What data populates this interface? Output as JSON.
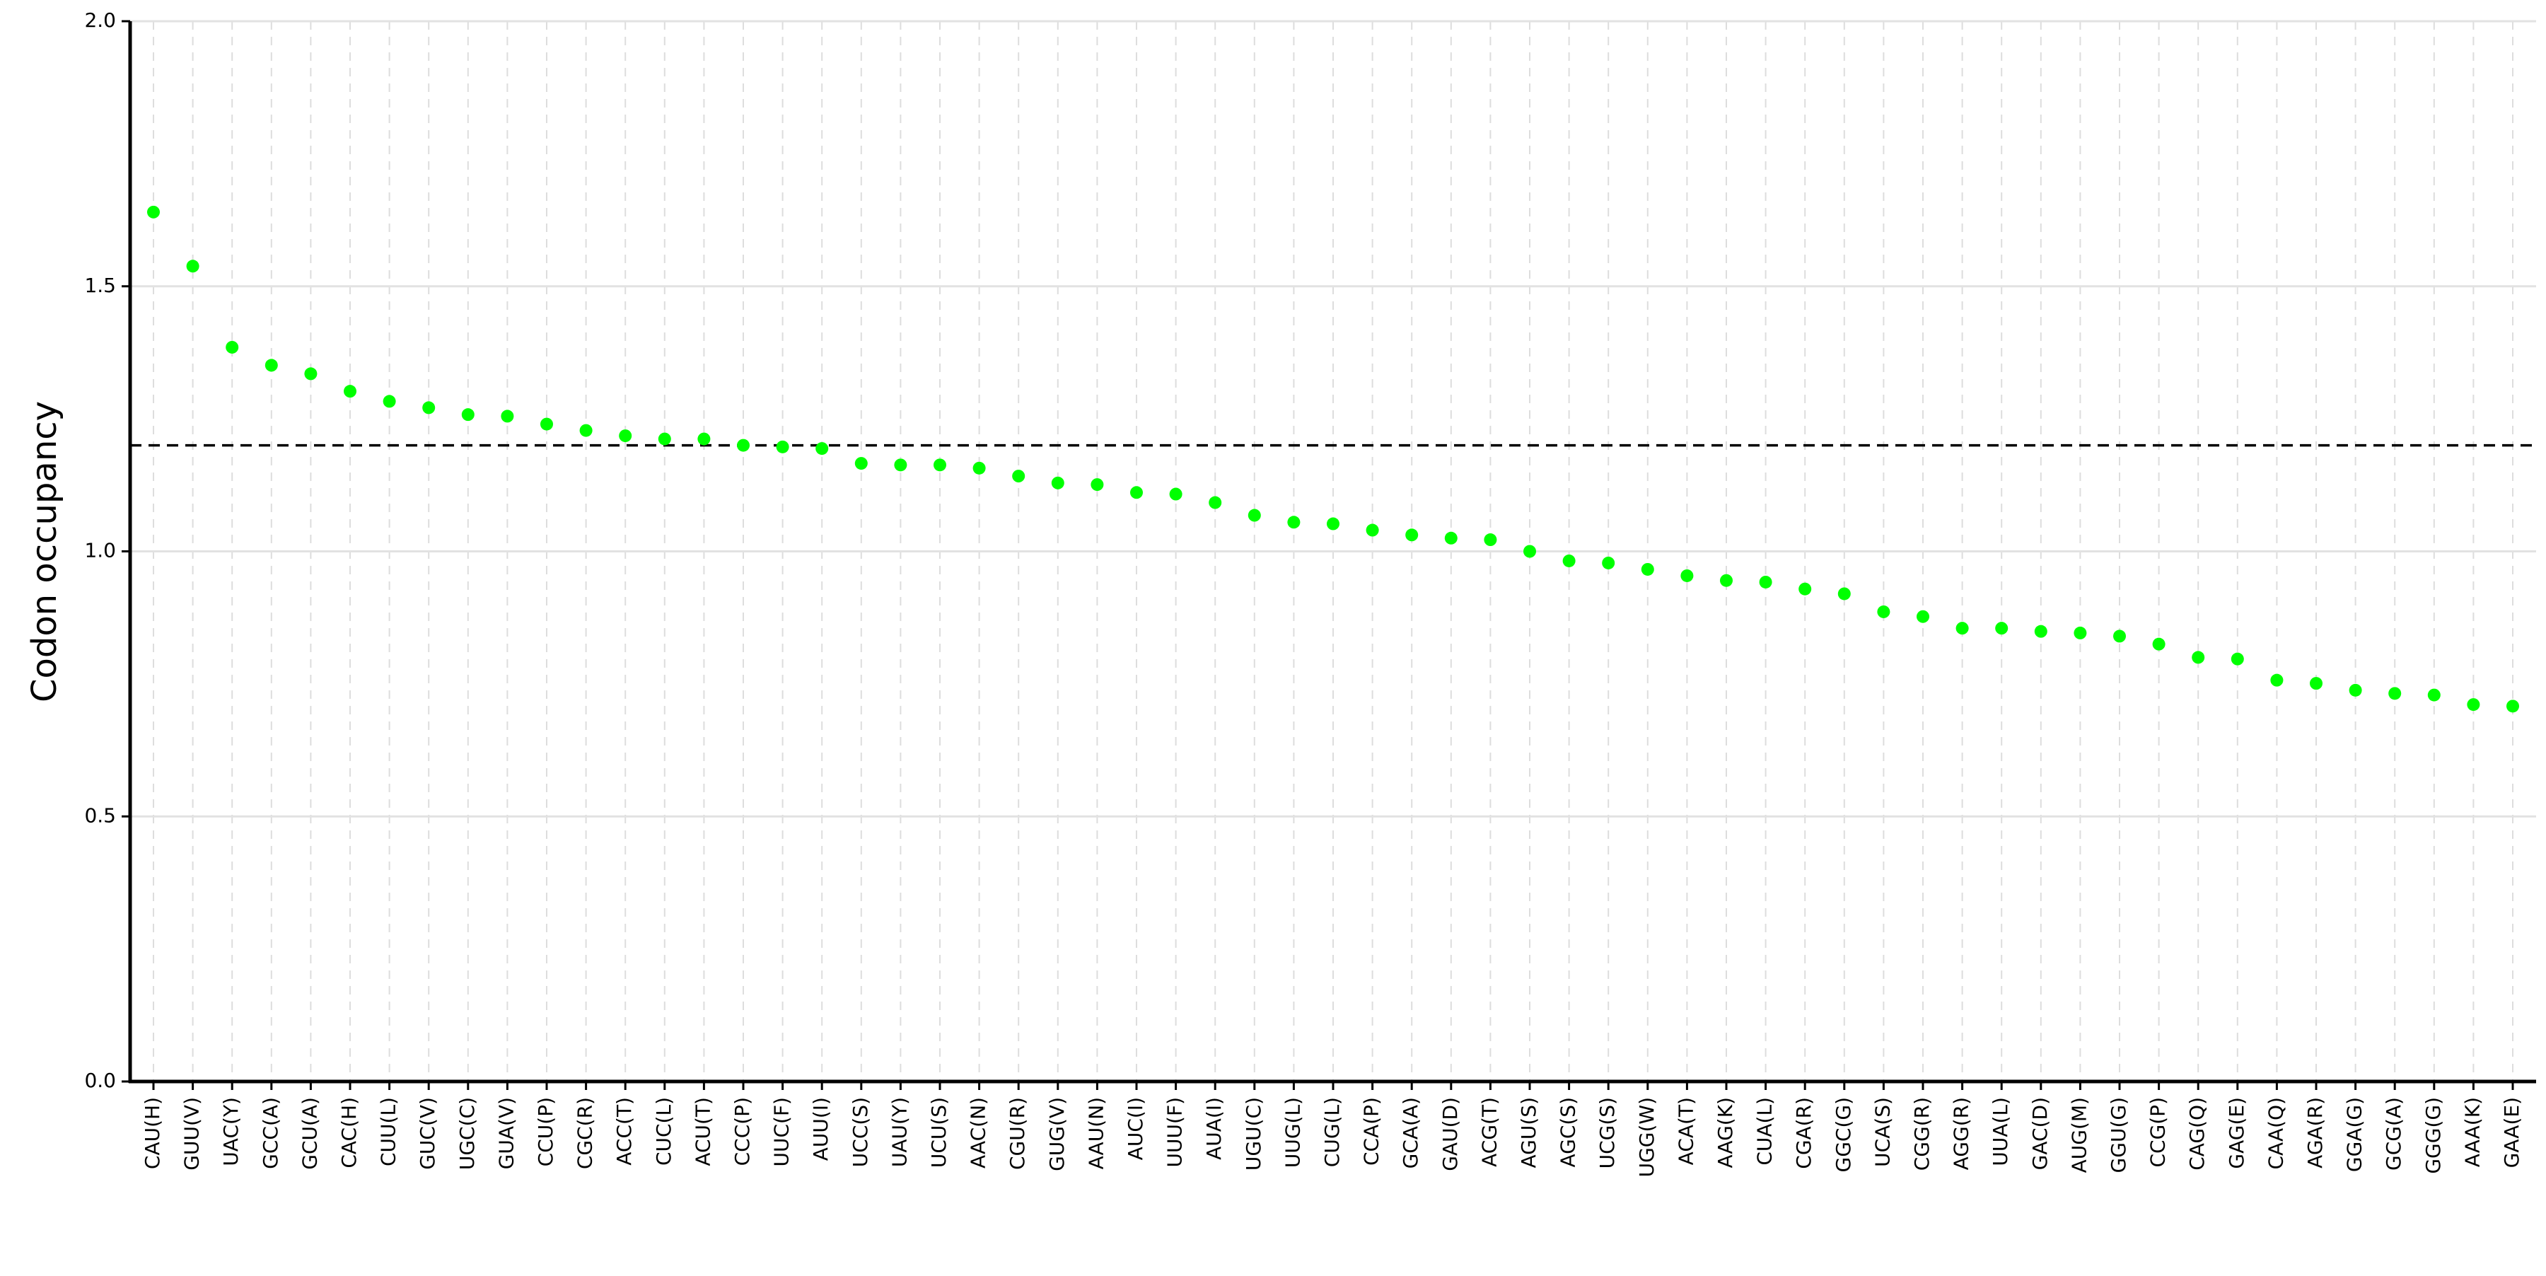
{
  "chart_data": {
    "type": "scatter",
    "y_label": "Codon occupancy",
    "categories": [
      "CAU(H)",
      "GUU(V)",
      "UAC(Y)",
      "GCC(A)",
      "GCU(A)",
      "CAC(H)",
      "CUU(L)",
      "GUC(V)",
      "UGC(C)",
      "GUA(V)",
      "CCU(P)",
      "CGC(R)",
      "ACC(T)",
      "CUC(L)",
      "ACU(T)",
      "CCC(P)",
      "UUC(F)",
      "AUU(I)",
      "UCC(S)",
      "UAU(Y)",
      "UCU(S)",
      "AAC(N)",
      "CGU(R)",
      "GUG(V)",
      "AAU(N)",
      "AUC(I)",
      "UUU(F)",
      "AUA(I)",
      "UGU(C)",
      "UUG(L)",
      "CUG(L)",
      "CCA(P)",
      "GCA(A)",
      "GAU(D)",
      "ACG(T)",
      "AGU(S)",
      "AGC(S)",
      "UCG(S)",
      "UGG(W)",
      "ACA(T)",
      "AAG(K)",
      "CUA(L)",
      "CGA(R)",
      "GGC(G)",
      "UCA(S)",
      "CGG(R)",
      "AGG(R)",
      "UUA(L)",
      "GAC(D)",
      "AUG(M)",
      "GGU(G)",
      "CCG(P)",
      "CAG(Q)",
      "GAG(E)",
      "CAA(Q)",
      "AGA(R)",
      "GGA(G)",
      "GCG(A)",
      "GGG(G)",
      "AAA(K)",
      "GAA(E)"
    ],
    "values": [
      1.64,
      1.538,
      1.385,
      1.351,
      1.335,
      1.302,
      1.283,
      1.271,
      1.258,
      1.255,
      1.24,
      1.228,
      1.218,
      1.212,
      1.212,
      1.2,
      1.197,
      1.194,
      1.166,
      1.163,
      1.163,
      1.157,
      1.142,
      1.129,
      1.126,
      1.111,
      1.108,
      1.092,
      1.068,
      1.055,
      1.052,
      1.04,
      1.031,
      1.025,
      1.022,
      1.0,
      0.982,
      0.978,
      0.966,
      0.954,
      0.945,
      0.942,
      0.929,
      0.92,
      0.886,
      0.877,
      0.855,
      0.855,
      0.849,
      0.846,
      0.84,
      0.825,
      0.8,
      0.797,
      0.757,
      0.751,
      0.738,
      0.732,
      0.729,
      0.711,
      0.708
    ],
    "color": "#00ff00",
    "reference_line": 1.2,
    "ylim": [
      0,
      2
    ],
    "yticks": [
      {
        "value": 0,
        "label": "0.0"
      },
      {
        "value": 0.5,
        "label": "0.5"
      },
      {
        "value": 1,
        "label": "1.0"
      },
      {
        "value": 1.5,
        "label": "1.5"
      },
      {
        "value": 2,
        "label": "2.0"
      }
    ],
    "grid": true
  }
}
